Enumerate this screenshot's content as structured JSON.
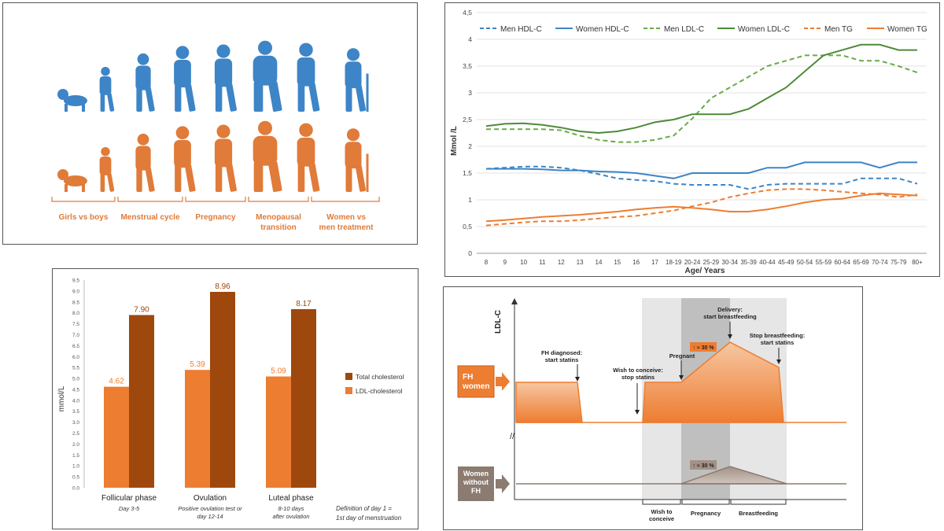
{
  "lifecycle": {
    "labels": [
      "Girls vs boys",
      "Menstrual cycle",
      "Pregnancy",
      "Menopausal",
      "transition",
      "Women vs",
      "men treatment"
    ],
    "male_color": "#3d85c6",
    "female_color": "#e07b39"
  },
  "chart_data": [
    {
      "type": "line",
      "xlabel": "Age/ Years",
      "ylabel": "Mmol /L",
      "ylim": [
        0,
        4.5
      ],
      "yticks": [
        "0",
        "0,5",
        "1",
        "1,5",
        "2",
        "2,5",
        "3",
        "3,5",
        "4",
        "4,5"
      ],
      "x": [
        "8",
        "9",
        "10",
        "11",
        "12",
        "13",
        "14",
        "15",
        "16",
        "17",
        "18-19",
        "20-24",
        "25-29",
        "30-34",
        "35-39",
        "40-44",
        "45-49",
        "50-54",
        "55-59",
        "60-64",
        "65-69",
        "70-74",
        "75-79",
        "80+"
      ],
      "legend_position": "top",
      "series": [
        {
          "name": "Men HDL-C",
          "color": "#3d85c6",
          "dashed": true,
          "values": [
            1.58,
            1.6,
            1.62,
            1.62,
            1.6,
            1.55,
            1.48,
            1.4,
            1.37,
            1.35,
            1.3,
            1.28,
            1.28,
            1.28,
            1.2,
            1.28,
            1.3,
            1.3,
            1.3,
            1.3,
            1.4,
            1.4,
            1.4,
            1.3
          ]
        },
        {
          "name": "Women HDL-C",
          "color": "#3d85c6",
          "dashed": false,
          "values": [
            1.58,
            1.58,
            1.58,
            1.57,
            1.55,
            1.55,
            1.53,
            1.52,
            1.5,
            1.45,
            1.4,
            1.5,
            1.5,
            1.5,
            1.5,
            1.6,
            1.6,
            1.7,
            1.7,
            1.7,
            1.7,
            1.6,
            1.7,
            1.7
          ]
        },
        {
          "name": "Men LDL-C",
          "color": "#6aaa48",
          "dashed": true,
          "values": [
            2.32,
            2.32,
            2.32,
            2.32,
            2.3,
            2.2,
            2.12,
            2.08,
            2.08,
            2.12,
            2.2,
            2.52,
            2.9,
            3.1,
            3.3,
            3.5,
            3.6,
            3.7,
            3.7,
            3.7,
            3.6,
            3.6,
            3.5,
            3.38
          ]
        },
        {
          "name": "Women LDL-C",
          "color": "#4e8a3a",
          "dashed": false,
          "values": [
            2.38,
            2.42,
            2.43,
            2.4,
            2.35,
            2.28,
            2.25,
            2.28,
            2.35,
            2.45,
            2.5,
            2.6,
            2.6,
            2.6,
            2.7,
            2.9,
            3.1,
            3.4,
            3.7,
            3.8,
            3.9,
            3.9,
            3.8,
            3.8
          ]
        },
        {
          "name": "Men TG",
          "color": "#ed7d31",
          "dashed": true,
          "values": [
            0.52,
            0.55,
            0.58,
            0.6,
            0.6,
            0.62,
            0.65,
            0.68,
            0.7,
            0.75,
            0.8,
            0.88,
            0.95,
            1.05,
            1.12,
            1.18,
            1.2,
            1.2,
            1.18,
            1.15,
            1.12,
            1.1,
            1.05,
            1.1
          ]
        },
        {
          "name": "Women TG",
          "color": "#ed7d31",
          "dashed": false,
          "values": [
            0.6,
            0.62,
            0.65,
            0.68,
            0.7,
            0.72,
            0.75,
            0.78,
            0.82,
            0.85,
            0.87,
            0.85,
            0.82,
            0.78,
            0.78,
            0.82,
            0.88,
            0.95,
            1.0,
            1.02,
            1.08,
            1.12,
            1.1,
            1.08
          ]
        }
      ]
    },
    {
      "type": "bar",
      "ylabel": "mmol/L",
      "ylim": [
        0,
        9.5
      ],
      "yticks": [
        "0.0",
        "0.5",
        "1.0",
        "1.5",
        "2.0",
        "2.5",
        "3.0",
        "3.5",
        "4.0",
        "4.5",
        "5.0",
        "5.5",
        "6.0",
        "6.5",
        "7.0",
        "7.5",
        "8.0",
        "8.5",
        "9.0",
        "9.5"
      ],
      "categories": [
        "Follicular phase",
        "Ovulation",
        "Luteal phase"
      ],
      "category_notes": [
        [
          "Day 3-5"
        ],
        [
          "Positive ovulation test or",
          "day 12-14"
        ],
        [
          "8-10 days",
          "after ovulation"
        ]
      ],
      "series": [
        {
          "name": "LDL-cholesterol",
          "color": "#ed7d31",
          "values": [
            4.62,
            5.39,
            5.09
          ],
          "labels": [
            "4.62",
            "5.39",
            "5.09"
          ]
        },
        {
          "name": "Total cholesterol",
          "color": "#9e480e",
          "values": [
            7.9,
            8.96,
            8.17
          ],
          "labels": [
            "7.90",
            "8.96",
            "8.17"
          ]
        }
      ],
      "legend_order": [
        "Total cholesterol",
        "LDL-cholesterol"
      ],
      "footnote": [
        "Definition of day 1 =",
        "1st day of menstruation"
      ]
    }
  ],
  "fh_diagram": {
    "ylabel": "LDL-C",
    "fh_label": [
      "FH",
      "women"
    ],
    "nonfh_label": [
      "Women",
      "without",
      "FH"
    ],
    "ann_fh": [
      "FH diagnosed:",
      "start statins"
    ],
    "ann_wish": [
      "Wish to conceive:",
      "stop statins"
    ],
    "ann_preg": "Pregnant",
    "ann_delivery": [
      "Delivery:",
      "start breastfeeding"
    ],
    "ann_stop": [
      "Stop breastfeeding:",
      "start statins"
    ],
    "badge_fh": "↑ ≈ 30 %",
    "badge_nonfh": "↑ ≈ 30 %",
    "phases": [
      [
        "Wish to",
        "conceive"
      ],
      [
        "Pregnancy"
      ],
      [
        "Breastfeeding"
      ]
    ],
    "fh_color": "#ed7d31",
    "nonfh_color": "#8c7b70"
  }
}
